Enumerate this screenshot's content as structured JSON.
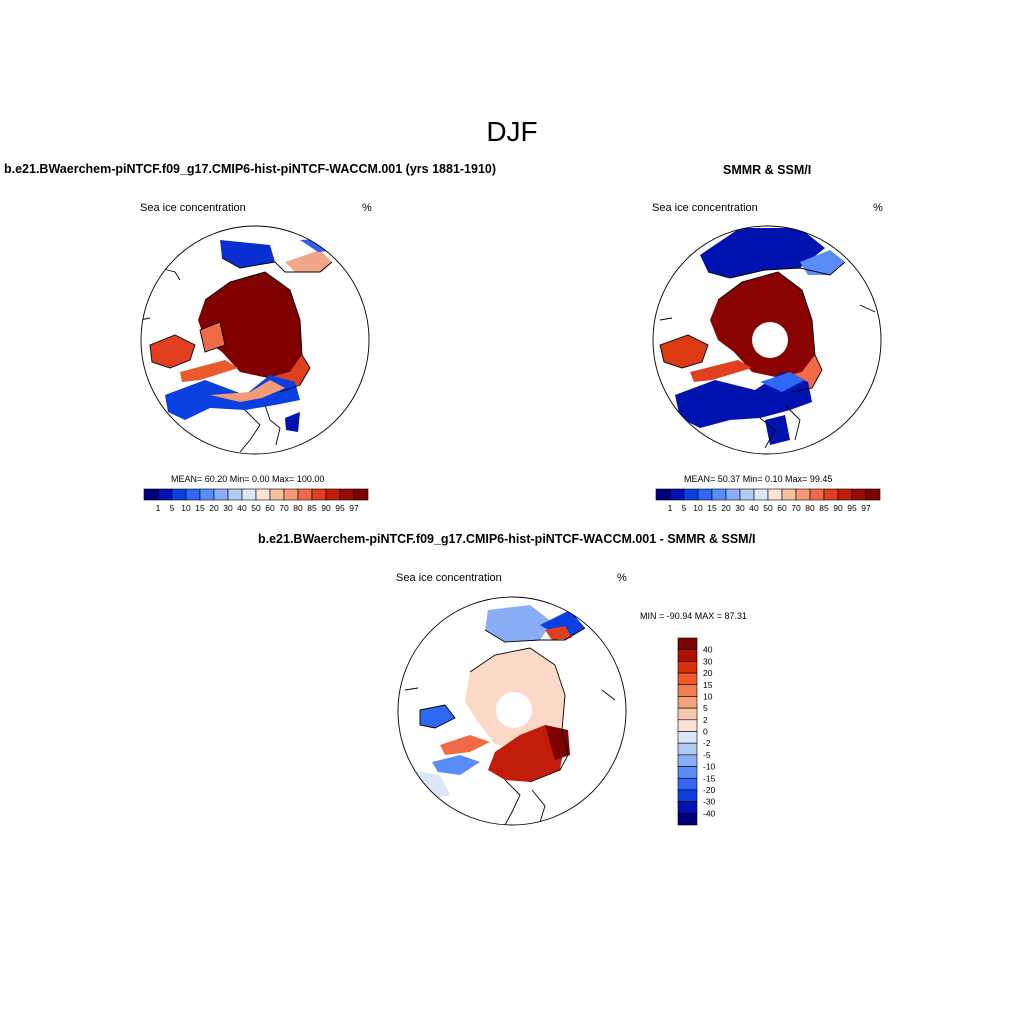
{
  "title": "DJF",
  "panels": {
    "model": {
      "title": "b.e21.BWaerchem-piNTCF.f09_g17.CMIP6-hist-piNTCF-WACCM.001 (yrs 1881-1910)",
      "variable": "Sea ice concentration",
      "units": "%",
      "stats": "MEAN=  60.20  Min=   0.00  Max= 100.00"
    },
    "obs": {
      "title": "SMMR & SSM/I",
      "variable": "Sea ice concentration",
      "units": "%",
      "stats": "MEAN=  50.37  Min=   0.10  Max=  99.45"
    },
    "diff": {
      "title": "b.e21.BWaerchem-piNTCF.f09_g17.CMIP6-hist-piNTCF-WACCM.001 - SMMR & SSM/I",
      "variable": "Sea ice concentration",
      "units": "%",
      "stats": "MIN = -90.94 MAX =  87.31"
    }
  },
  "colorbar_conc": {
    "labels": [
      "1",
      "5",
      "10",
      "15",
      "20",
      "30",
      "40",
      "50",
      "60",
      "70",
      "80",
      "85",
      "90",
      "95",
      "97"
    ],
    "colors": [
      "#00007f",
      "#0013b0",
      "#0a3fe0",
      "#2f68f6",
      "#5a8cf8",
      "#8aaef5",
      "#b3cbf2",
      "#dbe7f7",
      "#fbe3d6",
      "#f7c0a3",
      "#f49a77",
      "#f06a45",
      "#e0401f",
      "#c21d0b",
      "#9b0a02",
      "#7f0000"
    ]
  },
  "colorbar_diff": {
    "labels": [
      "40",
      "30",
      "20",
      "15",
      "10",
      "5",
      "2",
      "0",
      "-2",
      "-5",
      "-10",
      "-15",
      "-20",
      "-30",
      "-40"
    ],
    "colors": [
      "#7f0000",
      "#b01002",
      "#dc2f0c",
      "#f05a2c",
      "#f47e50",
      "#f6a07c",
      "#f9c7ab",
      "#fbe4d6",
      "#dbe7f7",
      "#b3cbf2",
      "#8aaef5",
      "#5a8cf8",
      "#2f68f6",
      "#0a3fe0",
      "#0013b0",
      "#00007f"
    ]
  }
}
